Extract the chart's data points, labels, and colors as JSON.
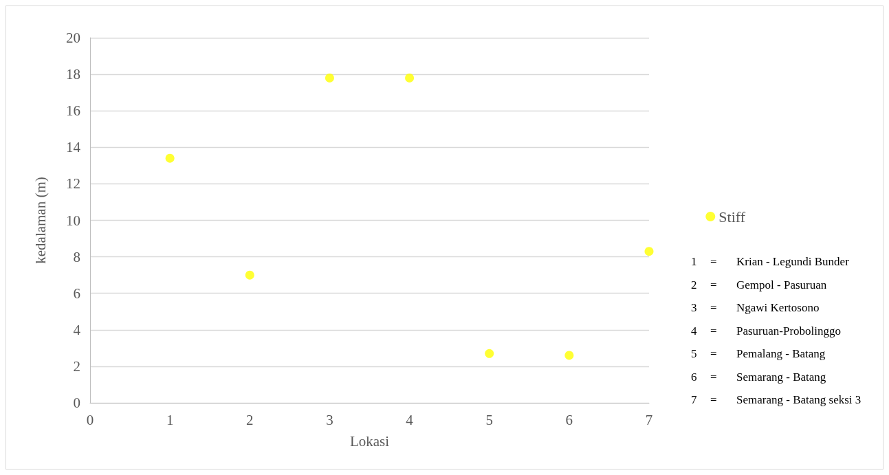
{
  "chart_data": {
    "type": "scatter",
    "xlabel": "Lokasi",
    "ylabel": "kedalaman (m)",
    "x": [
      1,
      2,
      3,
      4,
      5,
      6,
      7
    ],
    "series": [
      {
        "name": "Stiff",
        "color": "#ffff00",
        "values": [
          13.4,
          7.0,
          17.8,
          17.8,
          2.7,
          2.6,
          8.3
        ]
      }
    ],
    "xlim": [
      0,
      7
    ],
    "xticks": [
      0,
      1,
      2,
      3,
      4,
      5,
      6,
      7
    ],
    "ylim": [
      0,
      20
    ],
    "yticks": [
      0,
      2,
      4,
      6,
      8,
      10,
      12,
      14,
      16,
      18,
      20
    ],
    "grid": "y",
    "legend": "right",
    "marker": "circle",
    "annotations": [
      "1 = Krian - Legundi Bunder",
      "2 = Gempol - Pasuruan",
      "3 = Ngawi Kertosono",
      "4 = Pasuruan-Probolinggo",
      "5 = Pemalang - Batang",
      "6 = Semarang - Batang",
      "7 = Semarang - Batang seksi 3"
    ]
  }
}
